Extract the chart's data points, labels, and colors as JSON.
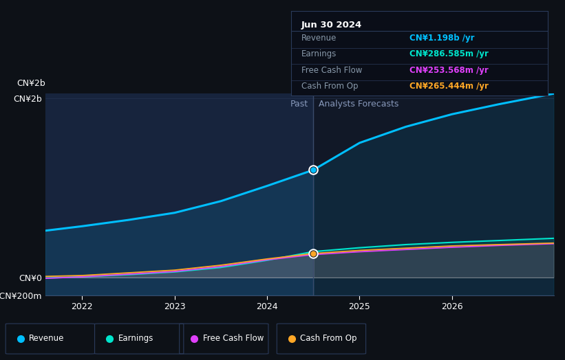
{
  "bg_color": "#0d1117",
  "plot_bg_color": "#111827",
  "past_bg_color": "#162035",
  "title": "Jun 30 2024",
  "tooltip_items": [
    {
      "label": "Revenue",
      "value": "CN¥1.198b /yr",
      "color": "#00bfff"
    },
    {
      "label": "Earnings",
      "value": "CN¥286.585m /yr",
      "color": "#00e5cc"
    },
    {
      "label": "Free Cash Flow",
      "value": "CN¥253.568m /yr",
      "color": "#e040fb"
    },
    {
      "label": "Cash From Op",
      "value": "CN¥265.444m /yr",
      "color": "#ffa726"
    }
  ],
  "separator_x": 2024.5,
  "past_label": "Past",
  "forecast_label": "Analysts Forecasts",
  "ylim": [
    -200000000.0,
    2050000000.0
  ],
  "ytick_labels": [
    "CN¥2b",
    "CN¥0",
    "-CN¥200m"
  ],
  "ytick_values": [
    2000000000.0,
    0,
    -200000000.0
  ],
  "xlim": [
    2021.6,
    2027.1
  ],
  "xtick_values": [
    2022,
    2023,
    2024,
    2025,
    2026
  ],
  "revenue_past_x": [
    2021.6,
    2022.0,
    2022.5,
    2023.0,
    2023.5,
    2024.0,
    2024.5
  ],
  "revenue_past_y": [
    520000000.0,
    570000000.0,
    640000000.0,
    720000000.0,
    850000000.0,
    1020000000.0,
    1198000000.0
  ],
  "revenue_forecast_x": [
    2024.5,
    2025.0,
    2025.5,
    2026.0,
    2026.5,
    2027.1
  ],
  "revenue_forecast_y": [
    1198000000.0,
    1500000000.0,
    1680000000.0,
    1820000000.0,
    1930000000.0,
    2050000000.0
  ],
  "earnings_past_x": [
    2021.6,
    2022.0,
    2022.5,
    2023.0,
    2023.5,
    2024.0,
    2024.5
  ],
  "earnings_past_y": [
    -8000000.0,
    5000000.0,
    30000000.0,
    60000000.0,
    110000000.0,
    190000000.0,
    286600000.0
  ],
  "earnings_forecast_x": [
    2024.5,
    2025.0,
    2025.5,
    2026.0,
    2026.5,
    2027.1
  ],
  "earnings_forecast_y": [
    286600000.0,
    330000000.0,
    365000000.0,
    390000000.0,
    410000000.0,
    435000000.0
  ],
  "fcf_past_x": [
    2021.6,
    2022.0,
    2022.5,
    2023.0,
    2023.5,
    2024.0,
    2024.5
  ],
  "fcf_past_y": [
    -12000000.0,
    5000000.0,
    35000000.0,
    65000000.0,
    120000000.0,
    195000000.0,
    253600000.0
  ],
  "fcf_forecast_x": [
    2024.5,
    2025.0,
    2025.5,
    2026.0,
    2026.5,
    2027.1
  ],
  "fcf_forecast_y": [
    253600000.0,
    285000000.0,
    310000000.0,
    335000000.0,
    355000000.0,
    375000000.0
  ],
  "cashop_past_x": [
    2021.6,
    2022.0,
    2022.5,
    2023.0,
    2023.5,
    2024.0,
    2024.5
  ],
  "cashop_past_y": [
    10000000.0,
    20000000.0,
    50000000.0,
    80000000.0,
    135000000.0,
    205000000.0,
    265400000.0
  ],
  "cashop_forecast_x": [
    2024.5,
    2025.0,
    2025.5,
    2026.0,
    2026.5,
    2027.1
  ],
  "cashop_forecast_y": [
    265400000.0,
    300000000.0,
    325000000.0,
    350000000.0,
    365000000.0,
    382000000.0
  ],
  "revenue_color": "#00bfff",
  "earnings_color": "#00e5cc",
  "fcf_color": "#e040fb",
  "cashop_color": "#ffa726",
  "legend_items": [
    {
      "label": "Revenue",
      "color": "#00bfff"
    },
    {
      "label": "Earnings",
      "color": "#00e5cc"
    },
    {
      "label": "Free Cash Flow",
      "color": "#e040fb"
    },
    {
      "label": "Cash From Op",
      "color": "#ffa726"
    }
  ]
}
